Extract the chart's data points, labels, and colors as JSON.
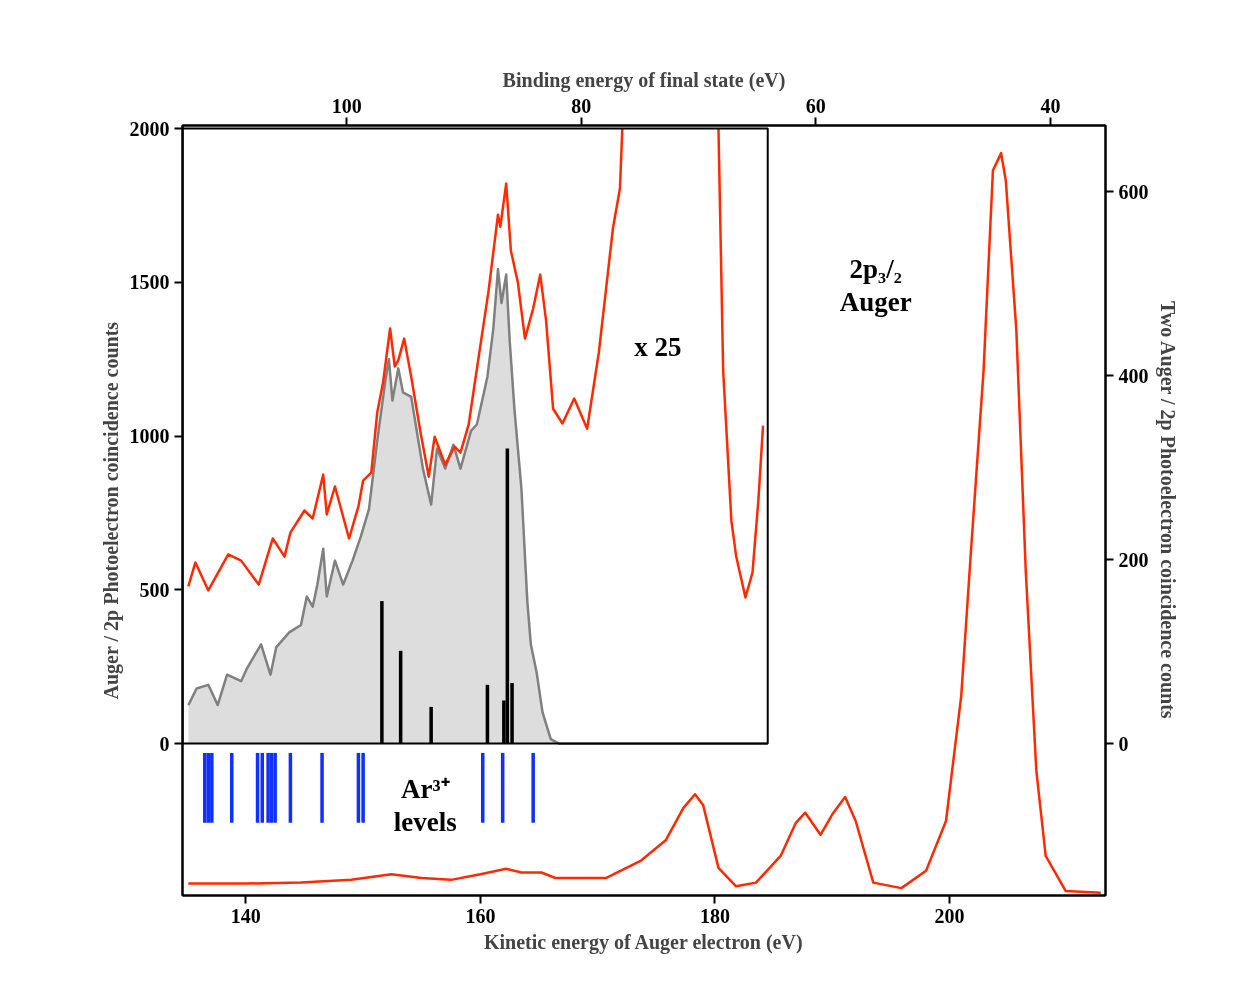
{
  "chart_data": {
    "type": "line",
    "xlabel": "Kinetic energy of Auger electron (eV)",
    "x2label": "Binding energy of final state (eV)",
    "ylabel": "Auger / 2p Photoelectron coincidence counts",
    "y2label": "Two Auger / 2p Photoelectron coincidence counts",
    "xlim": [
      134.6,
      213.3
    ],
    "xticks": [
      140,
      160,
      180,
      200
    ],
    "x2lim": [
      114.0,
      35.3
    ],
    "x2ticks": [
      100,
      80,
      60,
      40
    ],
    "ylim": [
      -494,
      2010
    ],
    "yticks": [
      0,
      500,
      1000,
      1500,
      2000
    ],
    "y2lim": [
      -165,
      672
    ],
    "y2ticks": [
      0,
      200,
      400,
      600
    ],
    "series": [
      {
        "type": "area",
        "axis": "y2",
        "color": "#808080",
        "x": [
          135.1,
          135.8,
          136.8,
          137.6,
          138.4,
          139.6,
          140.1,
          141.3,
          142.1,
          142.6,
          143.7,
          144.7,
          145.2,
          145.7,
          146.1,
          146.6,
          146.9,
          147.6,
          148.3,
          149.1,
          149.8,
          150.5,
          151.2,
          151.9,
          152.2,
          152.5,
          153.0,
          153.4,
          154.1,
          154.6,
          155.1,
          155.8,
          156.3,
          157.0,
          157.7,
          158.3,
          159.2,
          159.7,
          160.6,
          161.1,
          161.5,
          161.8,
          162.2,
          162.5,
          162.9,
          163.5,
          164.0,
          164.3,
          164.8,
          165.3,
          166.0,
          166.7,
          184.5
        ],
        "values": [
          42,
          60,
          64,
          42,
          75,
          68,
          82,
          108,
          75,
          105,
          121,
          129,
          160,
          149,
          173,
          212,
          160,
          199,
          173,
          199,
          225,
          255,
          329,
          395,
          418,
          373,
          408,
          382,
          377,
          338,
          299,
          260,
          321,
          299,
          325,
          299,
          340,
          347,
          399,
          451,
          516,
          479,
          510,
          438,
          364,
          277,
          155,
          108,
          77,
          34,
          5,
          0,
          0
        ]
      },
      {
        "type": "line",
        "axis": "y",
        "color": "#ff2a00",
        "x": [
          135.1,
          135.7,
          136.8,
          138.5,
          139.6,
          141.1,
          142.3,
          143.3,
          143.8,
          145.0,
          145.7,
          146.6,
          146.9,
          147.6,
          148.8,
          149.6,
          150.0,
          150.7,
          151.2,
          151.7,
          152.3,
          152.7,
          153.0,
          153.5,
          154.1,
          154.9,
          155.6,
          156.1,
          157.0,
          157.8,
          158.3,
          159.0,
          159.5,
          160.7,
          161.5,
          161.7,
          162.2,
          162.6,
          163.2,
          163.8,
          164.5,
          165.1,
          165.6,
          166.2,
          167.0,
          168.0,
          169.1,
          170.1,
          171.3,
          171.9,
          172.1,
          176.0,
          180.3,
          180.7,
          181.4,
          181.8,
          182.6,
          183.2,
          183.7,
          184.1
        ],
        "values": [
          511,
          589,
          498,
          615,
          595,
          517,
          667,
          608,
          686,
          758,
          732,
          875,
          745,
          836,
          667,
          771,
          855,
          881,
          1076,
          1174,
          1350,
          1226,
          1246,
          1317,
          1193,
          1011,
          868,
          998,
          907,
          966,
          946,
          1037,
          1167,
          1473,
          1720,
          1681,
          1821,
          1603,
          1499,
          1317,
          1415,
          1525,
          1376,
          1089,
          1041,
          1122,
          1024,
          1272,
          1675,
          1805,
          2000,
          null,
          2000,
          1213,
          725,
          611,
          475,
          556,
          790,
          1034
        ]
      },
      {
        "type": "bar",
        "axis": "y2",
        "color": "#000000",
        "x": [
          151.6,
          153.2,
          155.8,
          160.6,
          162.0,
          162.3,
          162.7
        ],
        "values": [
          155,
          101,
          40,
          64,
          47,
          321,
          66
        ]
      },
      {
        "type": "bar",
        "axis": "y2",
        "color": "#1030ff",
        "x": [
          136.5,
          136.8,
          137.1,
          138.8,
          141.0,
          141.4,
          141.9,
          142.2,
          142.5,
          143.8,
          146.5,
          149.6,
          150.0,
          160.2,
          161.9,
          164.5
        ],
        "base": [
          -86,
          -86,
          -86,
          -86,
          -86,
          -86,
          -86,
          -86,
          -86,
          -86,
          -86,
          -86,
          -86,
          -86,
          -86,
          -86
        ],
        "values": [
          76,
          76,
          76,
          76,
          76,
          76,
          76,
          76,
          76,
          76,
          76,
          76,
          76,
          76,
          76,
          76
        ]
      },
      {
        "axis": "y2",
        "color": "#ff2a00",
        "x": [
          135.1,
          140.0,
          144.7,
          149.0,
          152.4,
          155.0,
          157.5,
          160.0,
          162.2,
          163.5,
          165.2,
          166.4,
          169.4,
          170.7,
          173.7,
          175.8,
          177.3,
          178.3,
          179.0,
          180.3,
          181.8,
          183.5,
          185.6,
          186.9,
          187.7,
          189.0,
          190.1,
          191.1,
          192.0,
          193.5,
          195.9,
          198.0,
          199.7,
          201.0,
          201.8,
          202.9,
          203.7,
          204.4,
          204.8,
          205.7,
          206.5,
          207.4,
          208.2,
          209.9,
          212.9
        ],
        "values": [
          -152,
          -152,
          -151,
          -148,
          -142,
          -146,
          -148,
          -142,
          -136,
          -140,
          -140,
          -146,
          -146,
          -146,
          -127,
          -105,
          -70,
          -55,
          -67,
          -135,
          -155,
          -151,
          -122,
          -86,
          -75,
          -99,
          -75,
          -58,
          -84,
          -151,
          -157,
          -138,
          -84,
          52,
          204,
          405,
          623,
          642,
          612,
          449,
          188,
          -29,
          -122,
          -160,
          -162
        ]
      }
    ],
    "annotations": [
      "x 25",
      "2p₃/₂\nAuger",
      "Ar³⁺\nlevels"
    ]
  }
}
